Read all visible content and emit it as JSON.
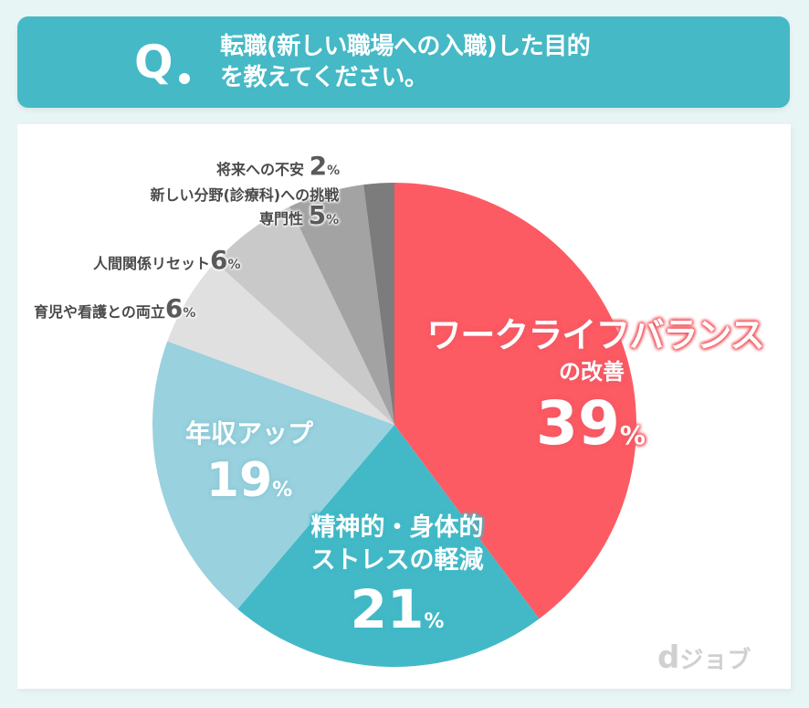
{
  "header": {
    "q_mark": "Q",
    "question_line1": "転職(新しい職場への入職)した目的",
    "question_line2": "を教えてください。"
  },
  "chart_data": {
    "type": "pie",
    "title": "転職(新しい職場への入職)した目的を教えてください。",
    "start_angle_deg": 0,
    "direction": "clockwise",
    "unit": "%",
    "slices": [
      {
        "label": "ワークライフバランスの改善",
        "value": 39,
        "color": "#fd5b64"
      },
      {
        "label": "精神的・身体的ストレスの軽減",
        "value": 21,
        "color": "#43b9c7"
      },
      {
        "label": "年収アップ",
        "value": 19,
        "color": "#99d1de"
      },
      {
        "label": "育児や看護との両立",
        "value": 6,
        "color": "#e0e0e0"
      },
      {
        "label": "人間関係リセット",
        "value": 6,
        "color": "#c9c9c9"
      },
      {
        "label": "新しい分野(診療科)への挑戦 専門性",
        "value": 5,
        "color": "#a3a3a3"
      },
      {
        "label": "将来への不安",
        "value": 2,
        "color": "#7c7c7c"
      }
    ]
  },
  "labels": {
    "wlb_line1": "ワークライフバランス",
    "wlb_line2": "の改善",
    "wlb_value": "39",
    "stress_line1": "精神的・身体的",
    "stress_line2": "ストレスの軽減",
    "stress_value": "21",
    "income_line1": "年収アップ",
    "income_value": "19",
    "childcare_label": "育児や看護との両立",
    "childcare_value": "6",
    "relations_label": "人間関係リセット",
    "relations_value": "6",
    "newfield_line1": "新しい分野(診療科)への挑戦",
    "newfield_line2": "専門性",
    "newfield_value": "5",
    "future_label": "将来への不安",
    "future_value": "2",
    "pct": "%"
  },
  "logo": {
    "d": "d",
    "text": "ジョブ"
  }
}
